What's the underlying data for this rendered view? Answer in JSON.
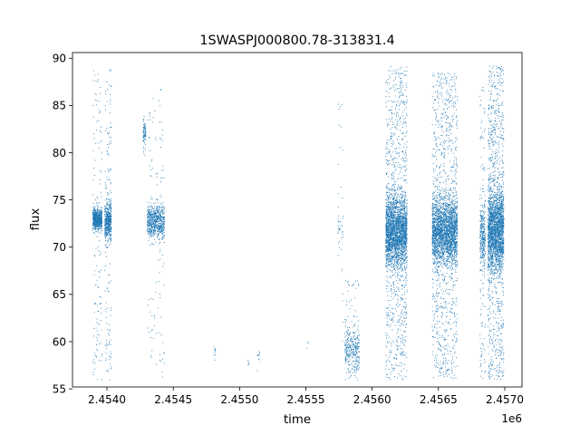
{
  "chart_data": {
    "type": "scatter",
    "title": "1SWASPJ000800.78-313831.4",
    "xlabel": "time",
    "ylabel": "flux",
    "x_offset_label": "1e6",
    "xlim": [
      2453740,
      2457130
    ],
    "ylim": [
      55.2,
      90.6
    ],
    "x_ticks": [
      2454000,
      2454500,
      2455000,
      2455500,
      2456000,
      2456500,
      2457000
    ],
    "x_tick_labels": [
      "2.4540",
      "2.4545",
      "2.4550",
      "2.4555",
      "2.4560",
      "2.4565",
      "2.4570"
    ],
    "y_ticks": [
      55,
      60,
      65,
      70,
      75,
      80,
      85,
      90
    ],
    "y_tick_labels": [
      "55",
      "60",
      "65",
      "70",
      "75",
      "80",
      "85",
      "90"
    ],
    "grid": false,
    "marker_color": "#1f77b4",
    "clusters": [
      {
        "x": [
          2453890,
          2453960
        ],
        "core": [
          71.5,
          74.5
        ],
        "halo": [
          56,
          89
        ],
        "n_core": 600,
        "n_halo": 140
      },
      {
        "x": [
          2453980,
          2454030
        ],
        "core": [
          70,
          75.5
        ],
        "halo": [
          56,
          89
        ],
        "n_core": 450,
        "n_halo": 140
      },
      {
        "x": [
          2454270,
          2454290
        ],
        "core": [
          80.5,
          83.8
        ],
        "halo": [
          79.5,
          84
        ],
        "n_core": 70,
        "n_halo": 10
      },
      {
        "x": [
          2454300,
          2454430
        ],
        "core": [
          70.5,
          75
        ],
        "halo": [
          56,
          87
        ],
        "n_core": 650,
        "n_halo": 110
      },
      {
        "x": [
          2454800,
          2454820
        ],
        "core": [
          58.5,
          59.8
        ],
        "halo": [
          58,
          60
        ],
        "n_core": 8,
        "n_halo": 2
      },
      {
        "x": [
          2455060,
          2455070
        ],
        "core": [
          57,
          59
        ],
        "halo": [
          57,
          59
        ],
        "n_core": 5,
        "n_halo": 0
      },
      {
        "x": [
          2455130,
          2455150
        ],
        "core": [
          57.5,
          59.5
        ],
        "halo": [
          56.8,
          59.8
        ],
        "n_core": 8,
        "n_halo": 2
      },
      {
        "x": [
          2455500,
          2455515
        ],
        "core": [
          59,
          60.5
        ],
        "halo": [
          59,
          60.5
        ],
        "n_core": 3,
        "n_halo": 0
      },
      {
        "x": [
          2455740,
          2455780
        ],
        "core": [
          70,
          74.5
        ],
        "halo": [
          60,
          86
        ],
        "n_core": 25,
        "n_halo": 25
      },
      {
        "x": [
          2455790,
          2455900
        ],
        "core": [
          56,
          62
        ],
        "halo": [
          56,
          66.5
        ],
        "n_core": 260,
        "n_halo": 80
      },
      {
        "x": [
          2456100,
          2456260
        ],
        "core": [
          67,
          76.5
        ],
        "halo": [
          56,
          89.2
        ],
        "n_core": 2200,
        "n_halo": 900
      },
      {
        "x": [
          2456450,
          2456640
        ],
        "core": [
          67,
          76.5
        ],
        "halo": [
          56,
          88.5
        ],
        "n_core": 2200,
        "n_halo": 900
      },
      {
        "x": [
          2456810,
          2456850
        ],
        "core": [
          67,
          75.5
        ],
        "halo": [
          56,
          87
        ],
        "n_core": 260,
        "n_halo": 120
      },
      {
        "x": [
          2456870,
          2456990
        ],
        "core": [
          66.5,
          77
        ],
        "halo": [
          56,
          89.2
        ],
        "n_core": 1800,
        "n_halo": 900
      }
    ]
  }
}
